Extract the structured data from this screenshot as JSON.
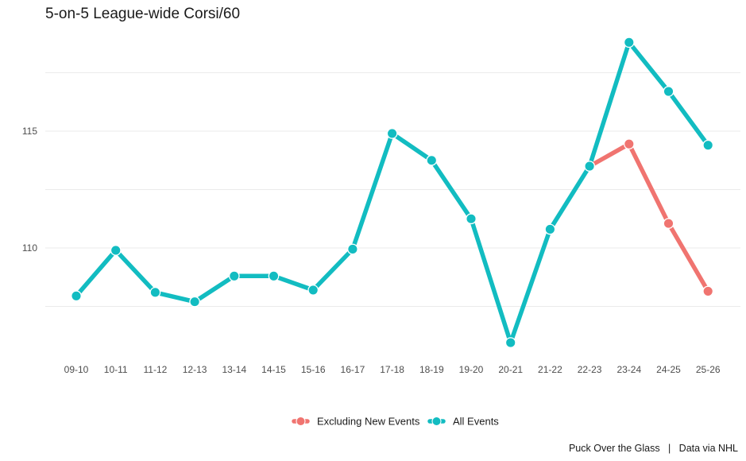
{
  "chart_data": {
    "type": "line",
    "title": "5-on-5 League-wide Corsi/60",
    "xlabel": "",
    "ylabel": "",
    "categories": [
      "09-10",
      "10-11",
      "11-12",
      "12-13",
      "13-14",
      "14-15",
      "15-16",
      "16-17",
      "17-18",
      "18-19",
      "19-20",
      "20-21",
      "21-22",
      "22-23",
      "23-24",
      "24-25",
      "25-26"
    ],
    "yticks": [
      110,
      115
    ],
    "ylim": [
      105.5,
      119.5
    ],
    "grid": true,
    "legend_position": "bottom",
    "series": [
      {
        "name": "Excluding New Events",
        "color": "#F07470",
        "values": [
          null,
          null,
          null,
          null,
          null,
          null,
          null,
          null,
          null,
          null,
          null,
          null,
          null,
          113.5,
          114.45,
          111.05,
          108.15
        ]
      },
      {
        "name": "All Events",
        "color": "#12BCC1",
        "values": [
          107.95,
          109.9,
          108.1,
          107.7,
          108.8,
          108.8,
          108.2,
          109.95,
          114.9,
          113.75,
          111.25,
          105.95,
          110.8,
          113.5,
          118.8,
          116.7,
          114.4
        ]
      }
    ],
    "caption": "Puck Over the Glass   |   Data via NHL"
  }
}
